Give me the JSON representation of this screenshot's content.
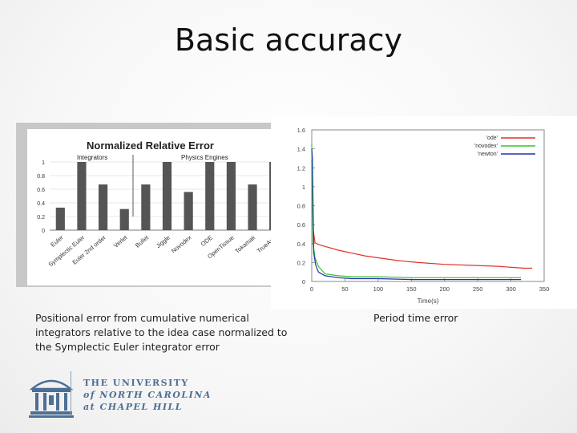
{
  "slide": {
    "title": "Basic accuracy",
    "caption_left": "Positional error from cumulative numerical integrators relative to the idea case normalized to the Symplectic Euler integrator error",
    "caption_right": "Period time error"
  },
  "logo": {
    "line1": "THE UNIVERSITY",
    "line2": "of NORTH CAROLINA",
    "line3": "at CHAPEL HILL",
    "color": "#4b6f96"
  },
  "chart_data": [
    {
      "type": "bar",
      "title": "Normalized Relative Error",
      "group_labels": [
        "Integrators",
        "Physics Engines"
      ],
      "categories": [
        "Euler",
        "Symplectic Euler",
        "Euler 2nd order",
        "Verlet",
        "Bullet",
        "Jiggle",
        "Novodex",
        "ODE",
        "OpenTissue",
        "Tokamak",
        "TrueAxis"
      ],
      "values": [
        0.33,
        1.0,
        0.67,
        0.31,
        0.67,
        1.0,
        0.56,
        1.0,
        1.0,
        0.67,
        1.0
      ],
      "yticks": [
        "0",
        "0.2",
        "0.4",
        "0.6",
        "0.8",
        "1"
      ],
      "ylim": [
        0,
        1.0
      ],
      "bar_color": "#555555",
      "grid": true
    },
    {
      "type": "line",
      "xlabel": "Time(s)",
      "xticks": [
        "0",
        "50",
        "100",
        "150",
        "200",
        "250",
        "300",
        "350"
      ],
      "yticks": [
        "0",
        "0.2",
        "0.4",
        "0.6",
        "0.8",
        "1",
        "1.2",
        "1.4",
        "1.6"
      ],
      "xlim": [
        0,
        350
      ],
      "ylim": [
        0,
        1.6
      ],
      "legend_position": "top-right",
      "series": [
        {
          "name": "'ode'",
          "color": "#e0302a",
          "x": [
            0,
            2,
            5,
            10,
            20,
            40,
            60,
            80,
            100,
            130,
            160,
            200,
            240,
            280,
            320,
            332
          ],
          "y": [
            1.28,
            0.55,
            0.41,
            0.39,
            0.37,
            0.33,
            0.3,
            0.27,
            0.25,
            0.22,
            0.2,
            0.18,
            0.17,
            0.16,
            0.14,
            0.14
          ]
        },
        {
          "name": "'novodex'",
          "color": "#33c233",
          "x": [
            0,
            2,
            5,
            10,
            20,
            40,
            60,
            80,
            100,
            150,
            200,
            250,
            300,
            315
          ],
          "y": [
            1.45,
            0.4,
            0.25,
            0.16,
            0.08,
            0.06,
            0.05,
            0.05,
            0.05,
            0.04,
            0.04,
            0.04,
            0.04,
            0.04
          ]
        },
        {
          "name": "'newton'",
          "color": "#2233aa",
          "x": [
            0,
            1,
            3,
            6,
            10,
            20,
            40,
            60,
            80,
            100,
            150,
            200,
            250,
            300,
            315
          ],
          "y": [
            1.4,
            1.3,
            0.3,
            0.17,
            0.1,
            0.06,
            0.04,
            0.03,
            0.03,
            0.03,
            0.02,
            0.02,
            0.02,
            0.02,
            0.02
          ]
        }
      ]
    }
  ]
}
